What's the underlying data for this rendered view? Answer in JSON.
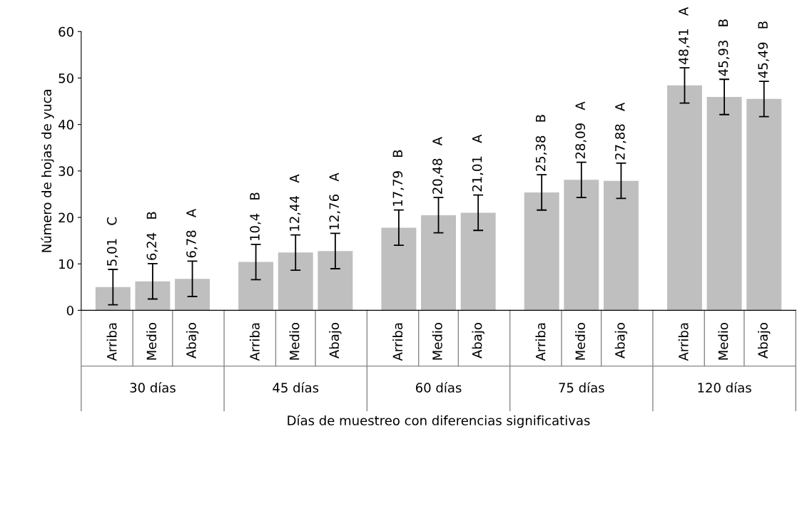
{
  "chart_data": {
    "type": "bar",
    "ylabel": "Número de hojas de yuca",
    "xlabel": "Días de muestreo con diferencias significativas",
    "categories": [
      "Arriba",
      "Medio",
      "Abajo",
      "Arriba",
      "Medio",
      "Abajo",
      "Arriba",
      "Medio",
      "Abajo",
      "Arriba",
      "Medio",
      "Abajo",
      "Arriba",
      "Medio",
      "Abajo"
    ],
    "values": [
      5.01,
      6.24,
      6.78,
      10.4,
      12.44,
      12.76,
      17.79,
      20.48,
      21.01,
      25.38,
      28.09,
      27.88,
      48.41,
      45.93,
      45.49
    ],
    "errors": [
      3.8,
      3.8,
      3.8,
      3.8,
      3.8,
      3.8,
      3.8,
      3.8,
      3.8,
      3.8,
      3.8,
      3.8,
      3.8,
      3.8,
      3.8
    ],
    "value_labels": [
      "5,01   C",
      "6,24   B",
      "6,78   A",
      "10,4   B",
      "12,44   A",
      "12,76   A",
      "17,79   B",
      "20,48   A",
      "21,01   A",
      "25,38   B",
      "28,09   A",
      "27,88   A",
      "48,41   A",
      "45,93   B",
      "45,49   B"
    ],
    "annotations": [
      "30 días",
      "45 días",
      "60 días",
      "75 días",
      "120 días"
    ],
    "color": "#bfbfbf",
    "ylim": [
      0,
      60
    ],
    "yticks": [
      0,
      10,
      20,
      30,
      40,
      50,
      60
    ],
    "grid": false,
    "legend": false
  }
}
